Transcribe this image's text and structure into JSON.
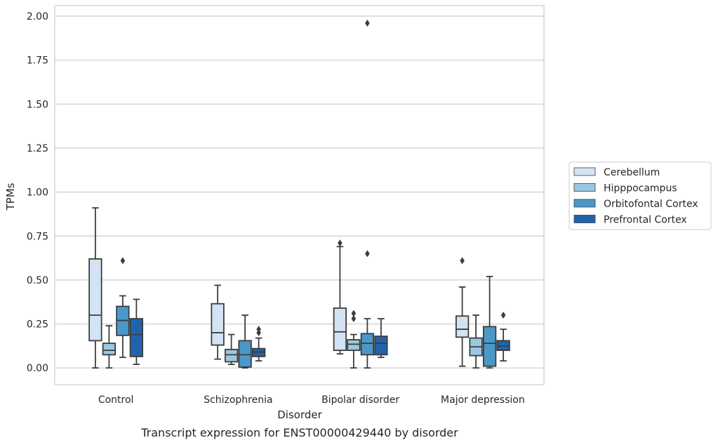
{
  "chart_data": {
    "type": "box",
    "caption": "Transcript expression for ENST00000429440 by disorder",
    "xlabel": "Disorder",
    "ylabel": "TPMs",
    "ylim": [
      -0.095,
      2.06
    ],
    "yticks": [
      "0.00",
      "0.25",
      "0.50",
      "0.75",
      "1.00",
      "1.25",
      "1.50",
      "1.75",
      "2.00"
    ],
    "grid": "horizontal",
    "legend_position": "right",
    "categories": [
      "Control",
      "Schizophrenia",
      "Bipolar disorder",
      "Major depression"
    ],
    "series": [
      {
        "name": "Cerebellum",
        "color": "#d3e3f3",
        "boxes": [
          {
            "min": 0.0,
            "q1": 0.155,
            "median": 0.3,
            "q3": 0.62,
            "max": 0.91,
            "outliers": []
          },
          {
            "min": 0.05,
            "q1": 0.13,
            "median": 0.2,
            "q3": 0.365,
            "max": 0.47,
            "outliers": []
          },
          {
            "min": 0.08,
            "q1": 0.1,
            "median": 0.205,
            "q3": 0.34,
            "max": 0.69,
            "outliers": [
              0.71
            ]
          },
          {
            "min": 0.01,
            "q1": 0.175,
            "median": 0.22,
            "q3": 0.295,
            "max": 0.46,
            "outliers": [
              0.61
            ]
          }
        ]
      },
      {
        "name": "Hipppocampus",
        "color": "#9ac8e0",
        "boxes": [
          {
            "min": 0.0,
            "q1": 0.075,
            "median": 0.1,
            "q3": 0.14,
            "max": 0.24,
            "outliers": []
          },
          {
            "min": 0.02,
            "q1": 0.035,
            "median": 0.075,
            "q3": 0.105,
            "max": 0.19,
            "outliers": []
          },
          {
            "min": 0.0,
            "q1": 0.1,
            "median": 0.135,
            "q3": 0.16,
            "max": 0.19,
            "outliers": [
              0.28,
              0.31
            ]
          },
          {
            "min": 0.0,
            "q1": 0.07,
            "median": 0.12,
            "q3": 0.17,
            "max": 0.3,
            "outliers": []
          }
        ]
      },
      {
        "name": "Orbitofontal Cortex",
        "color": "#4a98c9",
        "boxes": [
          {
            "min": 0.06,
            "q1": 0.185,
            "median": 0.27,
            "q3": 0.35,
            "max": 0.41,
            "outliers": [
              0.61
            ]
          },
          {
            "min": 0.0,
            "q1": 0.005,
            "median": 0.075,
            "q3": 0.155,
            "max": 0.3,
            "outliers": []
          },
          {
            "min": 0.0,
            "q1": 0.075,
            "median": 0.14,
            "q3": 0.195,
            "max": 0.28,
            "outliers": [
              0.65,
              1.96
            ]
          },
          {
            "min": 0.0,
            "q1": 0.01,
            "median": 0.14,
            "q3": 0.235,
            "max": 0.52,
            "outliers": []
          }
        ]
      },
      {
        "name": "Prefrontal Cortex",
        "color": "#2163aa",
        "boxes": [
          {
            "min": 0.02,
            "q1": 0.065,
            "median": 0.19,
            "q3": 0.28,
            "max": 0.39,
            "outliers": []
          },
          {
            "min": 0.04,
            "q1": 0.065,
            "median": 0.09,
            "q3": 0.11,
            "max": 0.17,
            "outliers": [
              0.2,
              0.22
            ]
          },
          {
            "min": 0.06,
            "q1": 0.075,
            "median": 0.14,
            "q3": 0.18,
            "max": 0.28,
            "outliers": []
          },
          {
            "min": 0.04,
            "q1": 0.1,
            "median": 0.125,
            "q3": 0.155,
            "max": 0.22,
            "outliers": [
              0.3
            ]
          }
        ]
      }
    ],
    "colors": {
      "box_edge": "#3d3d3d",
      "grid": "#cccccc",
      "frame": "#cccccc"
    }
  }
}
